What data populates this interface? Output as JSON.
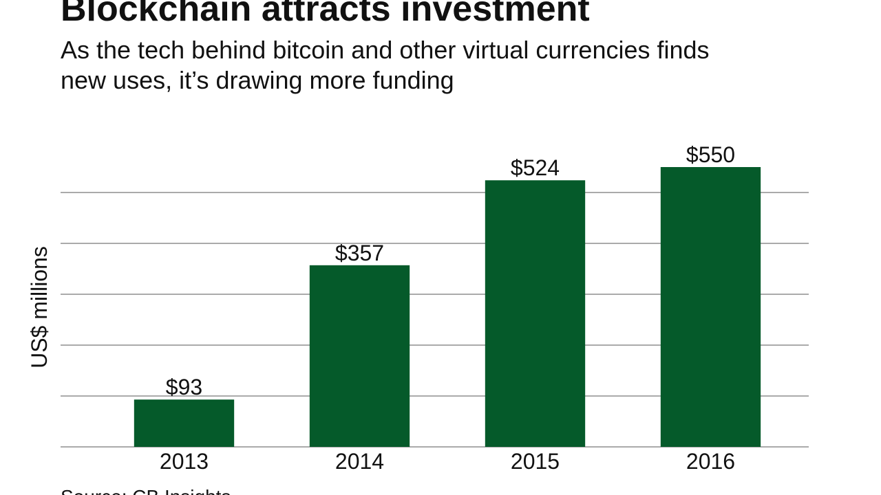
{
  "chart_data": {
    "type": "bar",
    "title": "Blockchain attracts investment",
    "subtitle_lines": [
      "As the tech behind bitcoin and other virtual currencies finds",
      "new uses, it’s drawing more funding"
    ],
    "y_label": "US$ millions",
    "source": "Source: CB Insights",
    "categories": [
      "2013",
      "2014",
      "2015",
      "2016"
    ],
    "values": [
      93,
      357,
      524,
      550
    ],
    "value_labels": [
      "$93",
      "$357",
      "$524",
      "$550"
    ],
    "color": "#055a2a",
    "ylim": [
      0,
      600
    ],
    "yticks": [
      0,
      100,
      200,
      300,
      400,
      500
    ],
    "grid": true
  }
}
